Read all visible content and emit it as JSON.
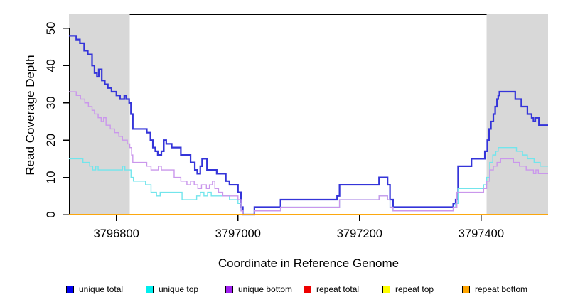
{
  "chart_data": {
    "type": "line",
    "subtype": "step",
    "title": "",
    "xlabel": "Coordinate in Reference Genome",
    "ylabel": "Read Coverage Depth",
    "xlim": [
      3796722,
      3797510
    ],
    "ylim": [
      0,
      53.8
    ],
    "x_ticks": [
      3796800,
      3797000,
      3797200,
      3797400
    ],
    "y_ticks": [
      0,
      10,
      20,
      30,
      40,
      50
    ],
    "grid": false,
    "legend_position": "bottom",
    "background": "#ffffff",
    "shaded_regions": [
      {
        "x_start": 3796722,
        "x_end": 3796822,
        "color": "#d8d8d8"
      },
      {
        "x_start": 3797409,
        "x_end": 3797510,
        "color": "#d8d8d8"
      }
    ],
    "series": [
      {
        "name": "unique total",
        "legend_color": "#0000EE",
        "line_color": "#3434d9",
        "line_width": 2.2,
        "points": [
          [
            3796722,
            48
          ],
          [
            3796734,
            47
          ],
          [
            3796740,
            46
          ],
          [
            3796747,
            44
          ],
          [
            3796753,
            43
          ],
          [
            3796760,
            40
          ],
          [
            3796764,
            38
          ],
          [
            3796768,
            37
          ],
          [
            3796771,
            39
          ],
          [
            3796776,
            36
          ],
          [
            3796781,
            35
          ],
          [
            3796786,
            34
          ],
          [
            3796792,
            33
          ],
          [
            3796800,
            32
          ],
          [
            3796806,
            31
          ],
          [
            3796813,
            32
          ],
          [
            3796816,
            31
          ],
          [
            3796821,
            30
          ],
          [
            3796824,
            27
          ],
          [
            3796827,
            23
          ],
          [
            3796850,
            22
          ],
          [
            3796856,
            20
          ],
          [
            3796860,
            18
          ],
          [
            3796864,
            17
          ],
          [
            3796868,
            16
          ],
          [
            3796874,
            17
          ],
          [
            3796878,
            20
          ],
          [
            3796882,
            19
          ],
          [
            3796891,
            18
          ],
          [
            3796906,
            16
          ],
          [
            3796922,
            14
          ],
          [
            3796929,
            12
          ],
          [
            3796933,
            11
          ],
          [
            3796938,
            13
          ],
          [
            3796941,
            15
          ],
          [
            3796949,
            12
          ],
          [
            3796965,
            11
          ],
          [
            3796980,
            9
          ],
          [
            3796986,
            8
          ],
          [
            3797000,
            6
          ],
          [
            3797005,
            2
          ],
          [
            3797008,
            0
          ],
          [
            3797027,
            2
          ],
          [
            3797070,
            4
          ],
          [
            3797163,
            5
          ],
          [
            3797167,
            8
          ],
          [
            3797232,
            10
          ],
          [
            3797246,
            8
          ],
          [
            3797250,
            4
          ],
          [
            3797255,
            2
          ],
          [
            3797354,
            3
          ],
          [
            3797358,
            4
          ],
          [
            3797362,
            13
          ],
          [
            3797384,
            15
          ],
          [
            3797406,
            17
          ],
          [
            3797410,
            20
          ],
          [
            3797413,
            23
          ],
          [
            3797416,
            25
          ],
          [
            3797420,
            27
          ],
          [
            3797423,
            29
          ],
          [
            3797426,
            31
          ],
          [
            3797428,
            32
          ],
          [
            3797430,
            33
          ],
          [
            3797456,
            31
          ],
          [
            3797466,
            29
          ],
          [
            3797476,
            27
          ],
          [
            3797483,
            26
          ],
          [
            3797486,
            25
          ],
          [
            3797489,
            26
          ],
          [
            3797495,
            24
          ]
        ]
      },
      {
        "name": "unique top",
        "legend_color": "#00EEEE",
        "line_color": "#72e5ec",
        "line_width": 1.4,
        "points": [
          [
            3796722,
            15
          ],
          [
            3796745,
            14
          ],
          [
            3796756,
            13
          ],
          [
            3796761,
            12
          ],
          [
            3796766,
            13
          ],
          [
            3796770,
            12
          ],
          [
            3796810,
            13
          ],
          [
            3796814,
            12
          ],
          [
            3796824,
            10
          ],
          [
            3796828,
            9
          ],
          [
            3796848,
            8
          ],
          [
            3796857,
            6
          ],
          [
            3796866,
            5
          ],
          [
            3796872,
            6
          ],
          [
            3796908,
            4
          ],
          [
            3796932,
            5
          ],
          [
            3796938,
            6
          ],
          [
            3796944,
            5
          ],
          [
            3796950,
            6
          ],
          [
            3796956,
            5
          ],
          [
            3796986,
            4
          ],
          [
            3797000,
            3
          ],
          [
            3797005,
            1
          ],
          [
            3797008,
            0
          ],
          [
            3797027,
            1
          ],
          [
            3797070,
            2
          ],
          [
            3797167,
            4
          ],
          [
            3797232,
            5
          ],
          [
            3797246,
            4
          ],
          [
            3797250,
            2
          ],
          [
            3797255,
            1
          ],
          [
            3797354,
            2
          ],
          [
            3797358,
            3
          ],
          [
            3797362,
            7
          ],
          [
            3797404,
            8
          ],
          [
            3797409,
            10
          ],
          [
            3797414,
            14
          ],
          [
            3797419,
            16
          ],
          [
            3797424,
            17
          ],
          [
            3797428,
            18
          ],
          [
            3797458,
            17
          ],
          [
            3797468,
            16
          ],
          [
            3797476,
            15
          ],
          [
            3797487,
            14
          ],
          [
            3797497,
            13
          ]
        ]
      },
      {
        "name": "unique bottom",
        "legend_color": "#A020F0",
        "line_color": "#ca97ec",
        "line_width": 1.4,
        "points": [
          [
            3796722,
            33
          ],
          [
            3796734,
            32
          ],
          [
            3796741,
            31
          ],
          [
            3796748,
            30
          ],
          [
            3796754,
            29
          ],
          [
            3796760,
            28
          ],
          [
            3796764,
            27
          ],
          [
            3796770,
            26
          ],
          [
            3796775,
            25
          ],
          [
            3796779,
            26
          ],
          [
            3796783,
            24
          ],
          [
            3796790,
            23
          ],
          [
            3796797,
            22
          ],
          [
            3796804,
            21
          ],
          [
            3796810,
            20
          ],
          [
            3796818,
            19
          ],
          [
            3796822,
            18
          ],
          [
            3796825,
            16
          ],
          [
            3796827,
            14
          ],
          [
            3796850,
            13
          ],
          [
            3796857,
            12
          ],
          [
            3796869,
            13
          ],
          [
            3796874,
            12
          ],
          [
            3796895,
            10
          ],
          [
            3796906,
            9
          ],
          [
            3796916,
            8
          ],
          [
            3796922,
            9
          ],
          [
            3796928,
            8
          ],
          [
            3796934,
            7
          ],
          [
            3796940,
            8
          ],
          [
            3796948,
            7
          ],
          [
            3796953,
            8
          ],
          [
            3796958,
            9
          ],
          [
            3796962,
            7
          ],
          [
            3796968,
            6
          ],
          [
            3796975,
            5
          ],
          [
            3797000,
            4
          ],
          [
            3797005,
            1
          ],
          [
            3797008,
            0
          ],
          [
            3797027,
            1
          ],
          [
            3797070,
            2
          ],
          [
            3797167,
            4
          ],
          [
            3797232,
            5
          ],
          [
            3797246,
            4
          ],
          [
            3797250,
            2
          ],
          [
            3797255,
            1
          ],
          [
            3797354,
            2
          ],
          [
            3797360,
            6
          ],
          [
            3797404,
            7
          ],
          [
            3797409,
            9
          ],
          [
            3797414,
            12
          ],
          [
            3797420,
            13
          ],
          [
            3797426,
            14
          ],
          [
            3797432,
            15
          ],
          [
            3797453,
            14
          ],
          [
            3797463,
            13
          ],
          [
            3797474,
            12
          ],
          [
            3797486,
            11
          ],
          [
            3797490,
            12
          ],
          [
            3797494,
            11
          ]
        ]
      },
      {
        "name": "repeat total",
        "legend_color": "#EE0000",
        "line_color": "#e00000",
        "line_width": 1.4,
        "points": [
          [
            3796722,
            0
          ]
        ]
      },
      {
        "name": "repeat top",
        "legend_color": "#FFFF00",
        "line_color": "#f5e800",
        "line_width": 1.4,
        "points": [
          [
            3796722,
            0
          ]
        ]
      },
      {
        "name": "repeat bottom",
        "legend_color": "#FFA500",
        "line_color": "#ffa500",
        "line_width": 1.6,
        "points": [
          [
            3796722,
            0
          ]
        ]
      }
    ]
  },
  "legend_item_lefts": [
    93,
    205,
    317,
    427,
    538,
    650
  ]
}
